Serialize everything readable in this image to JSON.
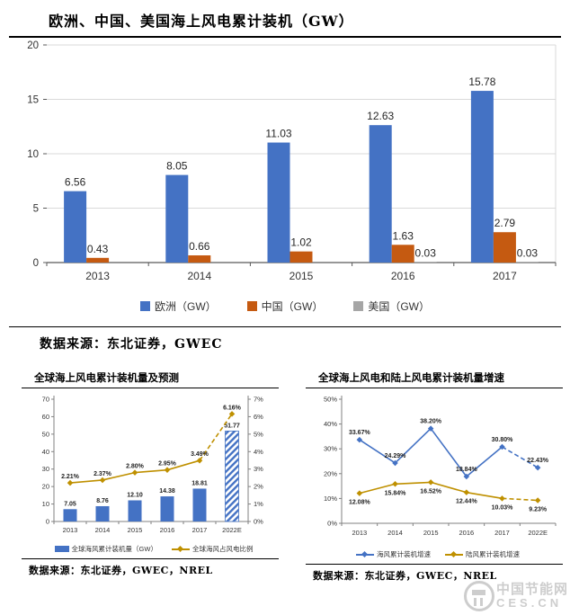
{
  "page": {
    "title": "欧洲、中国、美国海上风电累计装机（GW）",
    "main_source": "数据来源：东北证券，GWEC",
    "watermark": {
      "line1": "中国节能网",
      "line2": "CES.CN"
    }
  },
  "colors": {
    "europe_blue": "#4472C4",
    "china_orange": "#C55A11",
    "us_gray": "#A6A6A6",
    "gold": "#BF9000",
    "grid": "#D9D9D9",
    "axis": "#808080",
    "axis_dark": "#595959",
    "label": "#262626"
  },
  "chart_data": [
    {
      "id": "main",
      "type": "bar",
      "title": "欧洲、中国、美国海上风电累计装机（GW）",
      "categories": [
        "2013",
        "2014",
        "2015",
        "2016",
        "2017"
      ],
      "series": [
        {
          "name": "欧洲（GW）",
          "color": "#4472C4",
          "values": [
            6.56,
            8.05,
            11.03,
            12.63,
            15.78
          ],
          "labels": [
            "6.56",
            "8.05",
            "11.03",
            "12.63",
            "15.78"
          ]
        },
        {
          "name": "中国（GW）",
          "color": "#C55A11",
          "values": [
            0.43,
            0.66,
            1.02,
            1.63,
            2.79
          ],
          "labels": [
            "0.43",
            "0.66",
            "1.02",
            "1.63",
            "2.79"
          ]
        },
        {
          "name": "美国（GW）",
          "color": "#A6A6A6",
          "values": [
            null,
            null,
            null,
            0.03,
            0.03
          ],
          "labels": [
            "",
            "",
            "",
            "0.03",
            "0.03"
          ]
        }
      ],
      "ylim": [
        0,
        20
      ],
      "yticks": [
        0,
        5,
        10,
        15,
        20
      ],
      "grid": true,
      "legend_position": "bottom"
    },
    {
      "id": "offshore-forecast",
      "type": "bar",
      "title": "全球海上风电累计装机量及预测",
      "categories": [
        "2013",
        "2014",
        "2015",
        "2016",
        "2017",
        "2022E"
      ],
      "bar_series": {
        "name": "全球海风累计装机量（GW）",
        "color": "#4472C4",
        "values": [
          7.05,
          8.76,
          12.1,
          14.38,
          18.81,
          51.77
        ],
        "labels": [
          "7.05",
          "8.76",
          "12.10",
          "14.38",
          "18.81",
          "51.77"
        ],
        "hatched_last": true
      },
      "line_series": {
        "name": "全球海风占风电比例",
        "color": "#BF9000",
        "values_pct": [
          2.21,
          2.37,
          2.8,
          2.95,
          3.49,
          6.16
        ],
        "labels": [
          "2.21%",
          "2.37%",
          "2.80%",
          "2.95%",
          "3.49%",
          "6.16%"
        ],
        "dashed_last_segment": true
      },
      "left_ylim": [
        0,
        70
      ],
      "left_yticks": [
        0,
        10,
        20,
        30,
        40,
        50,
        60,
        70
      ],
      "right_ylim": [
        0,
        7
      ],
      "right_yticks": [
        "0%",
        "1%",
        "2%",
        "3%",
        "4%",
        "5%",
        "6%",
        "7%"
      ],
      "grid": false,
      "legend_position": "bottom",
      "source": "数据来源：东北证券，GWEC，NREL"
    },
    {
      "id": "growth-rates",
      "type": "line",
      "title": "全球海上风电和陆上风电累计装机量增速",
      "categories": [
        "2013",
        "2014",
        "2015",
        "2016",
        "2017",
        "2022E"
      ],
      "series": [
        {
          "name": "海风累计装机增速",
          "color": "#4472C4",
          "values_pct": [
            33.67,
            24.29,
            38.2,
            18.84,
            30.8,
            22.43
          ],
          "labels": [
            "33.67%",
            "24.29%",
            "38.20%",
            "18.84%",
            "30.80%",
            "22.43%"
          ],
          "label_side": "above",
          "dashed_last_segment": true
        },
        {
          "name": "陆风累计装机增速",
          "color": "#BF9000",
          "values_pct": [
            12.08,
            15.84,
            16.52,
            12.44,
            10.03,
            9.23
          ],
          "labels": [
            "12.08%",
            "15.84%",
            "16.52%",
            "12.44%",
            "10.03%",
            "9.23%"
          ],
          "label_side": "below",
          "dashed_last_segment": true
        }
      ],
      "ylim": [
        0,
        50
      ],
      "yticks": [
        "0%",
        "10%",
        "20%",
        "30%",
        "40%",
        "50%"
      ],
      "ytick_values": [
        0,
        10,
        20,
        30,
        40,
        50
      ],
      "grid": false,
      "legend_position": "bottom",
      "source": "数据来源：东北证券，GWEC，NREL"
    }
  ]
}
